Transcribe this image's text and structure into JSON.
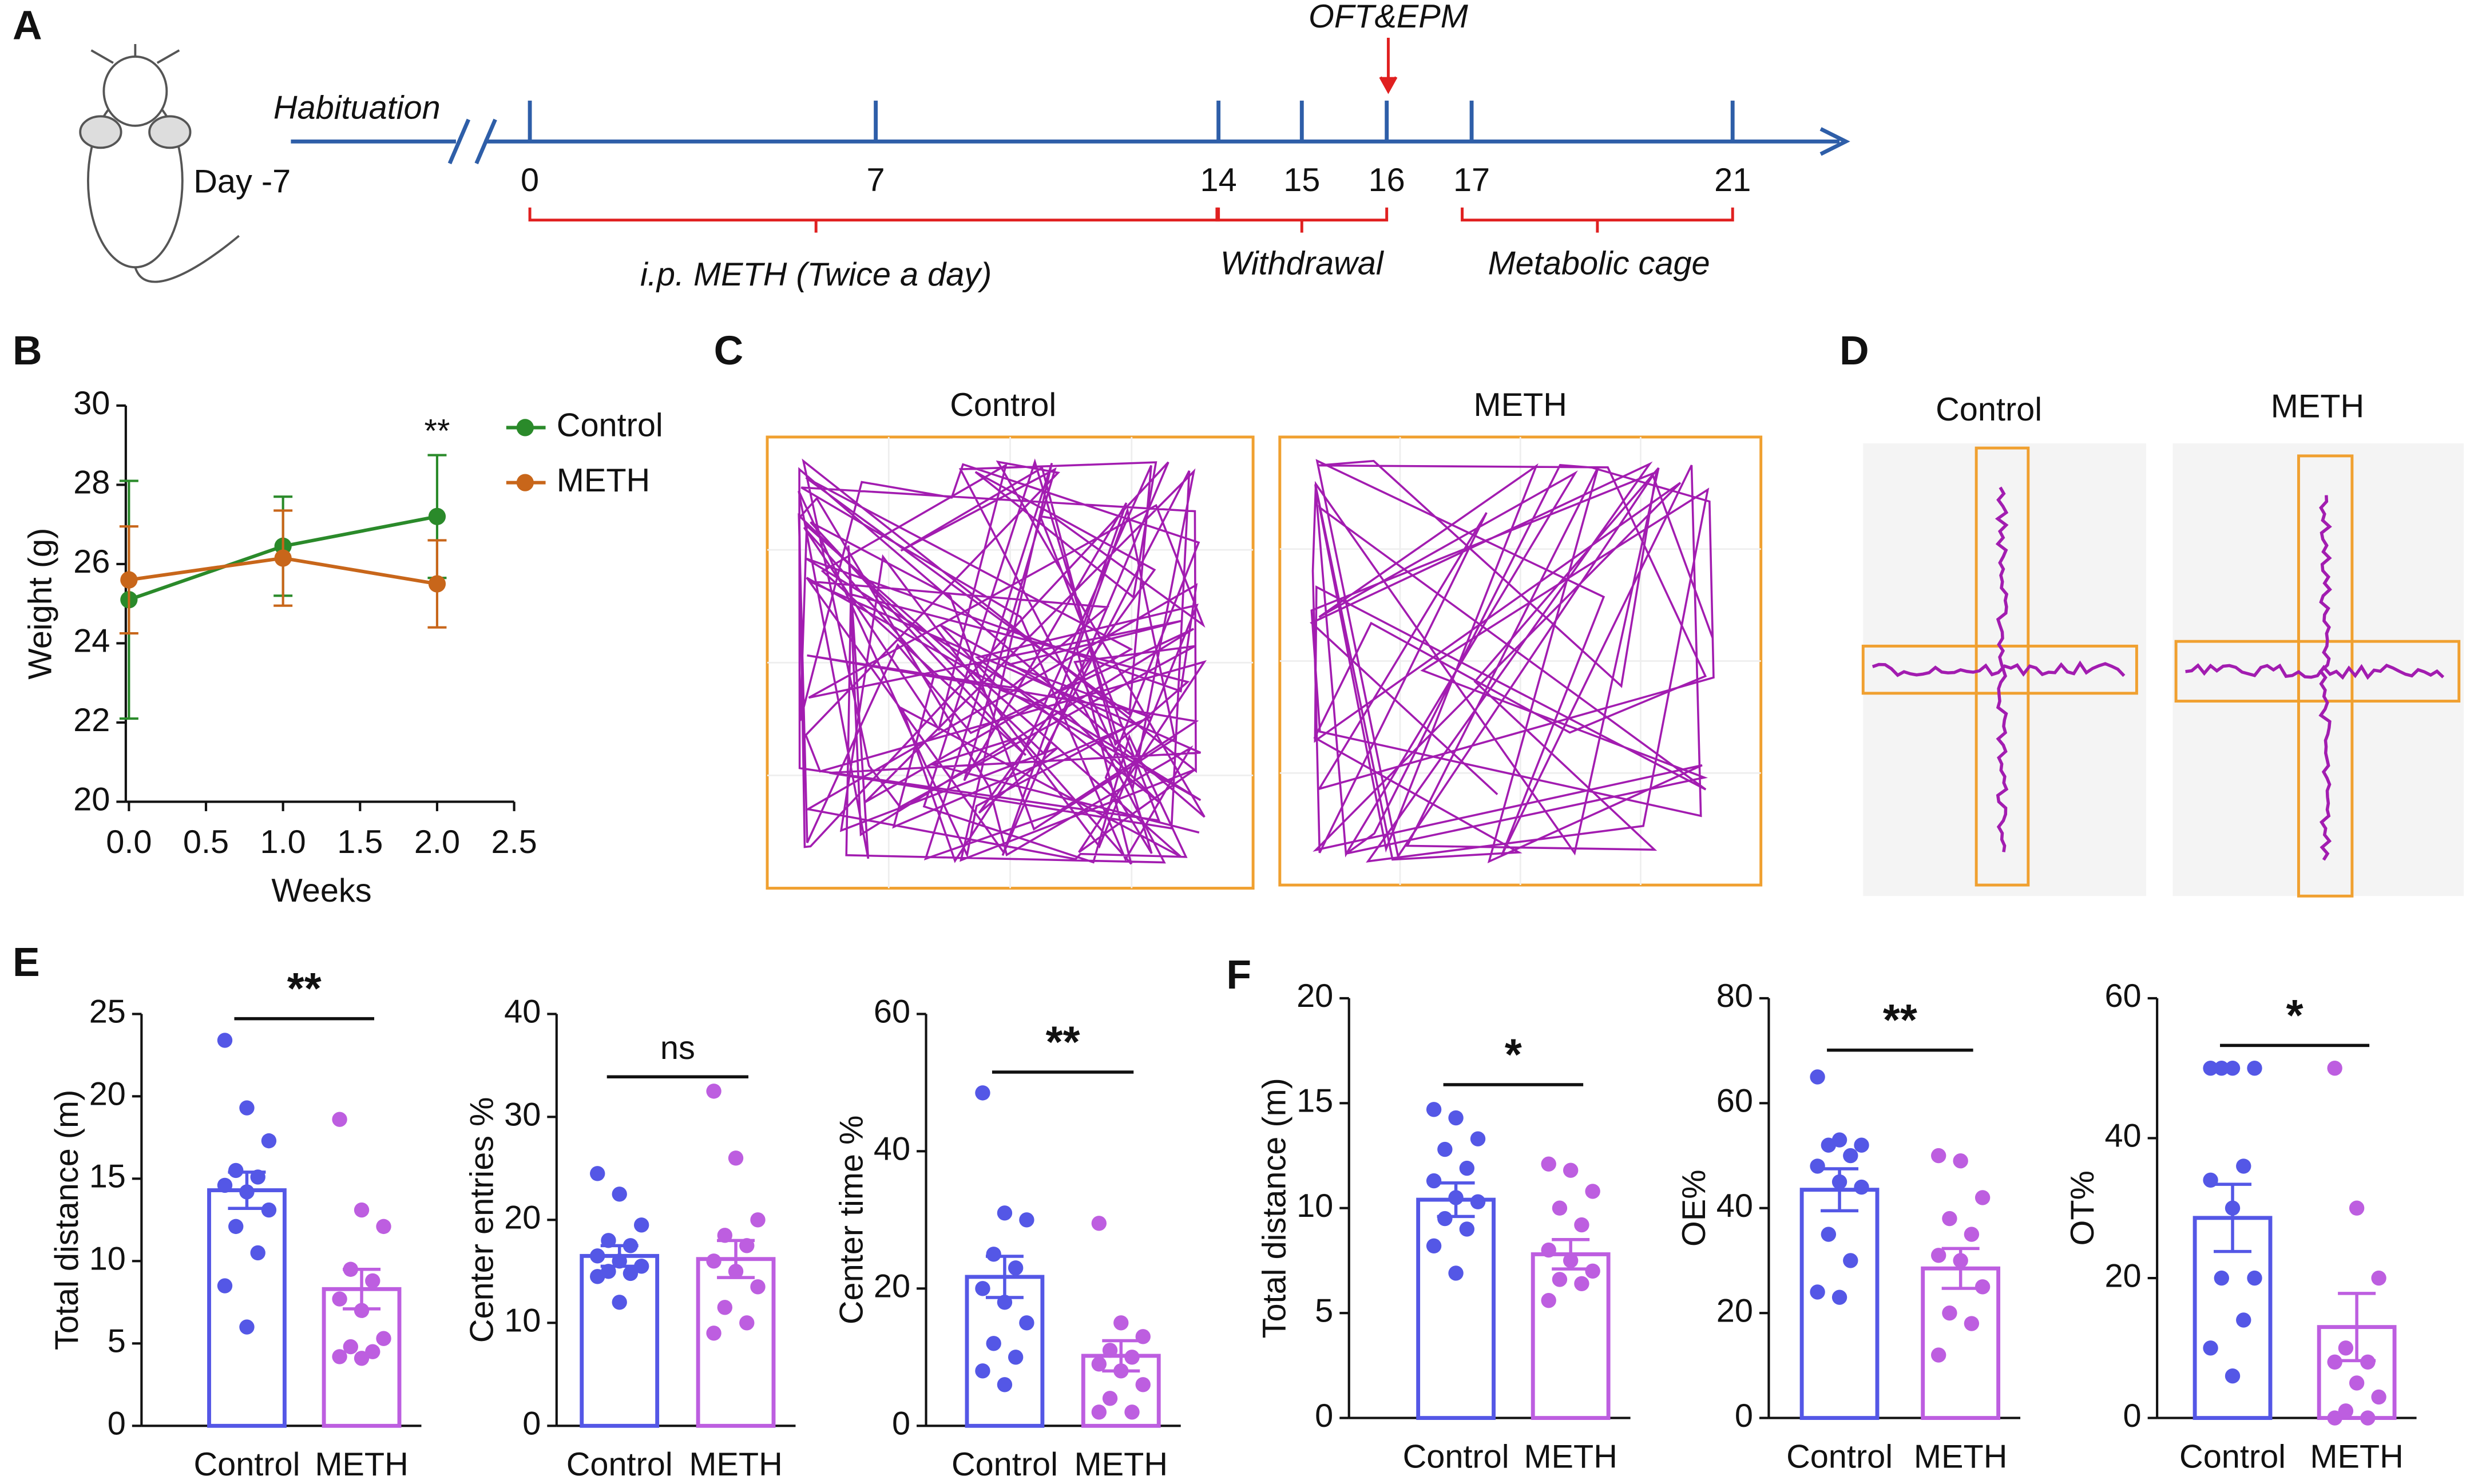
{
  "panel_labels": [
    "A",
    "B",
    "C",
    "D",
    "E",
    "F"
  ],
  "timeline": {
    "start_label": "Habituation",
    "day_label": "Day -7",
    "days": [
      0,
      7,
      14,
      15,
      16,
      17,
      21
    ],
    "event": "OFT&EPM",
    "phases": [
      "i.p. METH (Twice a day)",
      "Withdrawal",
      "Metabolic cage"
    ]
  },
  "open_field": {
    "groups": [
      "Control",
      "METH"
    ]
  },
  "epm": {
    "groups": [
      "Control",
      "METH"
    ]
  },
  "chart_data": [
    {
      "type": "line",
      "xlabel": "Weeks",
      "ylabel": "Weight (g)",
      "x": [
        0,
        1,
        2
      ],
      "series": [
        {
          "name": "Control",
          "color": "#2a8a2a",
          "values": [
            25.1,
            26.45,
            27.2
          ],
          "errors": [
            3.0,
            1.25,
            1.55
          ]
        },
        {
          "name": "METH",
          "color": "#c8661a",
          "values": [
            25.6,
            26.15,
            25.5
          ],
          "errors": [
            1.35,
            1.2,
            1.1
          ]
        }
      ],
      "xlim": [
        0,
        2.5
      ],
      "xticks": [
        {
          "value": 0,
          "label": "0.0"
        },
        {
          "value": 0.5,
          "label": "0.5"
        },
        {
          "value": 1,
          "label": "1.0"
        },
        {
          "value": 1.5,
          "label": "1.5"
        },
        {
          "value": 2,
          "label": "2.0"
        },
        {
          "value": 2.5,
          "label": "2.5"
        }
      ],
      "ylim": [
        20,
        30
      ],
      "yticks": [
        20,
        22,
        24,
        26,
        28,
        30
      ],
      "annotations": [
        {
          "x": 2,
          "text": "**"
        }
      ]
    },
    {
      "type": "bar",
      "ylabel": "Total distance (m)",
      "categories": [
        "Control",
        "METH"
      ],
      "colors": [
        "#5457e6",
        "#bd5ee0"
      ],
      "values": [
        14.3,
        8.3
      ],
      "errors": [
        1.1,
        1.2
      ],
      "points": [
        [
          23.4,
          19.3,
          17.3,
          15.5,
          15.1,
          14.6,
          14.2,
          13.1,
          12.1,
          10.5,
          8.5,
          6.0
        ],
        [
          18.6,
          13.1,
          12.1,
          9.5,
          8.8,
          7.7,
          7.0,
          5.3,
          4.8,
          4.5,
          4.2,
          4.1
        ]
      ],
      "ylim": [
        0,
        25
      ],
      "yticks": [
        0,
        5,
        10,
        15,
        20,
        25
      ],
      "significance": "**"
    },
    {
      "type": "bar",
      "ylabel": "Center entries %",
      "categories": [
        "Control",
        "METH"
      ],
      "colors": [
        "#5457e6",
        "#bd5ee0"
      ],
      "values": [
        16.5,
        16.2
      ],
      "errors": [
        1.0,
        1.8
      ],
      "points": [
        [
          24.5,
          22.5,
          19.5,
          18,
          17.5,
          16.5,
          16,
          15.5,
          15,
          14.8,
          14.5,
          12
        ],
        [
          32.5,
          26,
          20,
          18.5,
          17.5,
          16,
          15,
          13.5,
          11.5,
          10,
          9
        ]
      ],
      "ylim": [
        0,
        40
      ],
      "yticks": [
        0,
        10,
        20,
        30,
        40
      ],
      "significance": "ns"
    },
    {
      "type": "bar",
      "ylabel": "Center time %",
      "categories": [
        "Control",
        "METH"
      ],
      "colors": [
        "#5457e6",
        "#bd5ee0"
      ],
      "values": [
        21.7,
        10.2
      ],
      "errors": [
        3.0,
        2.2
      ],
      "points": [
        [
          48.5,
          31,
          30,
          25,
          23,
          20,
          18,
          15,
          12,
          10,
          8,
          6
        ],
        [
          29.5,
          15,
          13,
          11,
          10,
          9,
          8,
          6,
          4,
          2,
          2
        ]
      ],
      "ylim": [
        0,
        60
      ],
      "yticks": [
        0,
        20,
        40,
        60
      ],
      "significance": "**"
    },
    {
      "type": "bar",
      "ylabel": "Total distance (m)",
      "categories": [
        "Control",
        "METH"
      ],
      "colors": [
        "#5457e6",
        "#bd5ee0"
      ],
      "values": [
        10.4,
        7.8
      ],
      "errors": [
        0.8,
        0.7
      ],
      "points": [
        [
          14.7,
          14.3,
          13.3,
          12.8,
          11.9,
          11.3,
          10.5,
          10.3,
          9.5,
          9.0,
          8.2,
          6.9
        ],
        [
          12.1,
          11.8,
          10.8,
          10.0,
          9.2,
          8.0,
          7.5,
          7.0,
          6.6,
          6.4,
          5.6
        ]
      ],
      "ylim": [
        0,
        20
      ],
      "yticks": [
        0,
        5,
        10,
        15,
        20
      ],
      "significance": "*"
    },
    {
      "type": "bar",
      "ylabel": "OE%",
      "categories": [
        "Control",
        "METH"
      ],
      "colors": [
        "#5457e6",
        "#bd5ee0"
      ],
      "values": [
        43.5,
        28.5
      ],
      "errors": [
        4.0,
        3.8
      ],
      "points": [
        [
          65,
          53,
          52,
          52,
          50,
          48,
          45,
          44,
          35,
          30,
          24,
          23
        ],
        [
          50,
          49,
          42,
          38,
          35,
          31,
          30,
          25,
          20,
          18,
          12
        ]
      ],
      "ylim": [
        0,
        80
      ],
      "yticks": [
        0,
        20,
        40,
        60,
        80
      ],
      "significance": "**"
    },
    {
      "type": "bar",
      "ylabel": "OT%",
      "categories": [
        "Control",
        "METH"
      ],
      "colors": [
        "#5457e6",
        "#bd5ee0"
      ],
      "values": [
        28.6,
        13.0
      ],
      "errors": [
        4.8,
        4.8
      ],
      "points": [
        [
          50,
          50,
          50,
          50,
          36,
          34,
          30,
          20,
          20,
          14,
          10,
          6
        ],
        [
          50,
          30,
          20,
          10,
          8,
          8,
          5,
          3,
          1,
          0,
          0
        ]
      ],
      "ylim": [
        0,
        60
      ],
      "yticks": [
        0,
        20,
        40,
        60
      ],
      "significance": "*"
    }
  ]
}
